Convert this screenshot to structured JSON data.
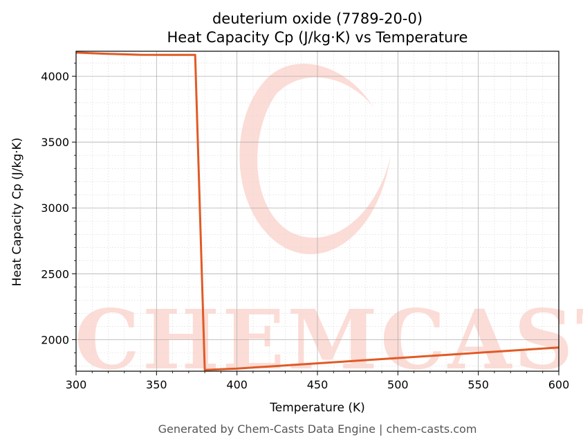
{
  "chart_data": {
    "type": "line",
    "title": "deuterium oxide (7789-20-0)",
    "subtitle": "Heat Capacity Cp (J/kg·K) vs Temperature",
    "xlabel": "Temperature (K)",
    "ylabel": "Heat Capacity Cp (J/kg·K)",
    "xlim": [
      300,
      600
    ],
    "ylim": [
      1760,
      4190
    ],
    "xticks": [
      300,
      350,
      400,
      450,
      500,
      550,
      600
    ],
    "yticks": [
      2000,
      2500,
      3000,
      3500,
      4000
    ],
    "grid": true,
    "series": [
      {
        "color": "#e05a25",
        "x": [
          300,
          320,
          340,
          360,
          374,
          380,
          400,
          450,
          500,
          550,
          600
        ],
        "y": [
          4180,
          4170,
          4163,
          4162,
          4162,
          1770,
          1780,
          1820,
          1860,
          1900,
          1940
        ]
      }
    ]
  },
  "watermark": {
    "text": "CHEMCASTS",
    "color": "#fcdcd6"
  },
  "footer": "Generated by Chem-Casts Data Engine | chem-casts.com"
}
